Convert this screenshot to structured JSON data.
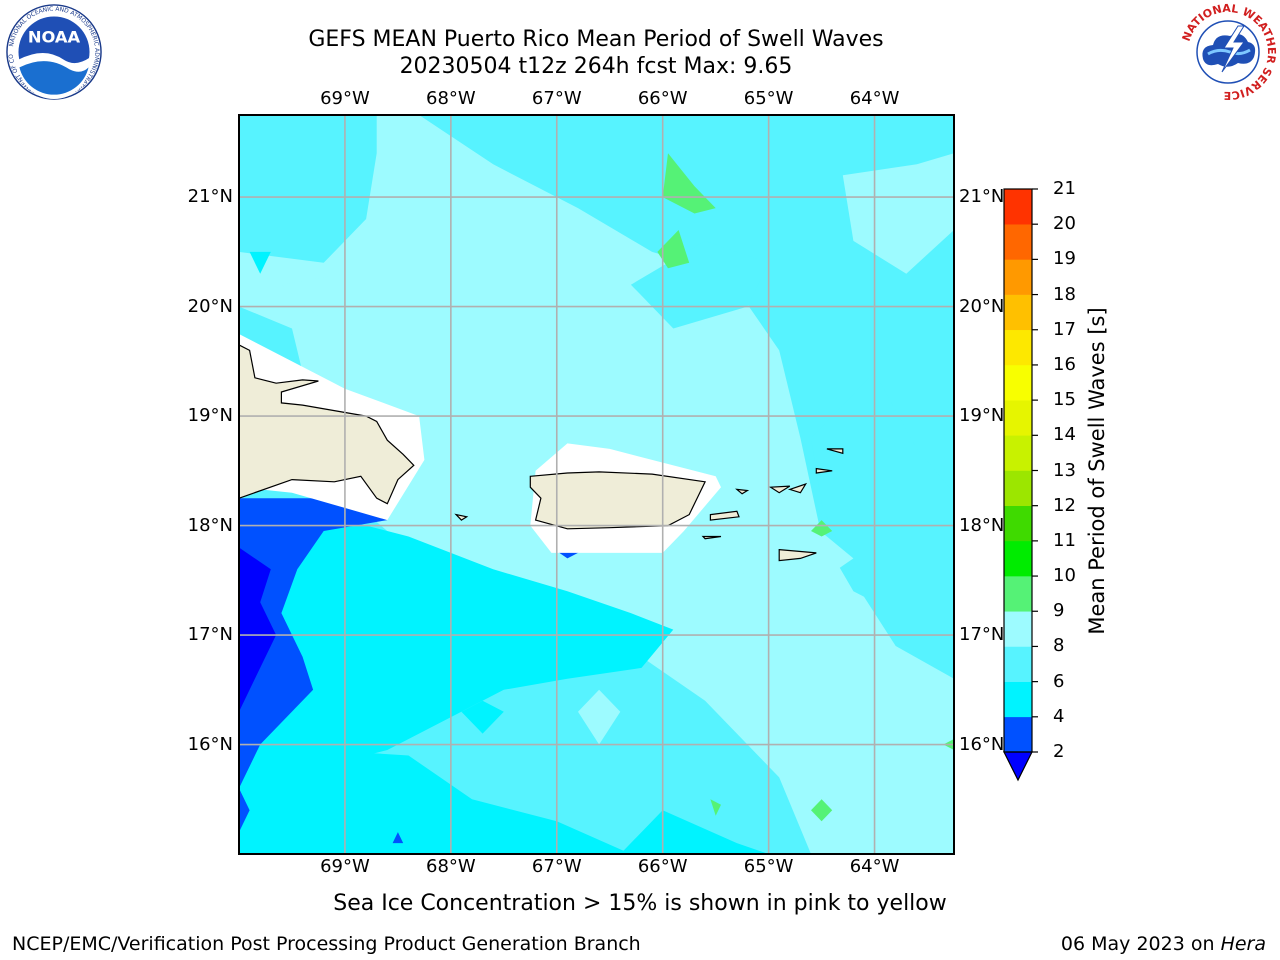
{
  "header": {
    "title_line1": "GEFS MEAN Puerto Rico Mean Period of Swell Waves",
    "title_line2": "20230504 t12z 264h fcst   Max: 9.65"
  },
  "logos": {
    "noaa": "NOAA",
    "noaa_ring": "NATIONAL OCEANIC AND ATMOSPHERIC ADMINISTRATION · U.S. DEPARTMENT OF COMMERCE ·",
    "nws_ring": "NATIONAL WEATHER SERVICE"
  },
  "map": {
    "lon_range": [
      -70.0,
      -63.25
    ],
    "lat_range": [
      15.0,
      21.75
    ],
    "lon_labels": [
      "69°W",
      "68°W",
      "67°W",
      "66°W",
      "65°W",
      "64°W"
    ],
    "lat_labels": [
      "16°N",
      "17°N",
      "18°N",
      "19°N",
      "20°N",
      "21°N"
    ],
    "gridlines": true,
    "land_color": "#efedd8",
    "masked_color": "#ffffff"
  },
  "colorbar": {
    "title": "Mean Period of Swell Waves [s]",
    "ticks": [
      "2",
      "4",
      "6",
      "8",
      "9",
      "10",
      "11",
      "12",
      "13",
      "14",
      "15",
      "16",
      "17",
      "18",
      "19",
      "20",
      "21"
    ],
    "colors": [
      "#0051ff",
      "#00f3ff",
      "#57f3ff",
      "#9dfbff",
      "#55f276",
      "#00ec00",
      "#3fda00",
      "#9ce600",
      "#c8f200",
      "#e6f500",
      "#f8ff00",
      "#fde800",
      "#ffc000",
      "#ff9900",
      "#ff6700",
      "#ff3300"
    ],
    "under_color": "#0000ff",
    "extend": "min"
  },
  "footer": {
    "note": "Sea Ice Concentration > 15% is shown in pink to yellow",
    "credit": "NCEP/EMC/Verification Post Processing Product Generation Branch",
    "date": "06 May 2023 on ",
    "machine": "Hera"
  }
}
